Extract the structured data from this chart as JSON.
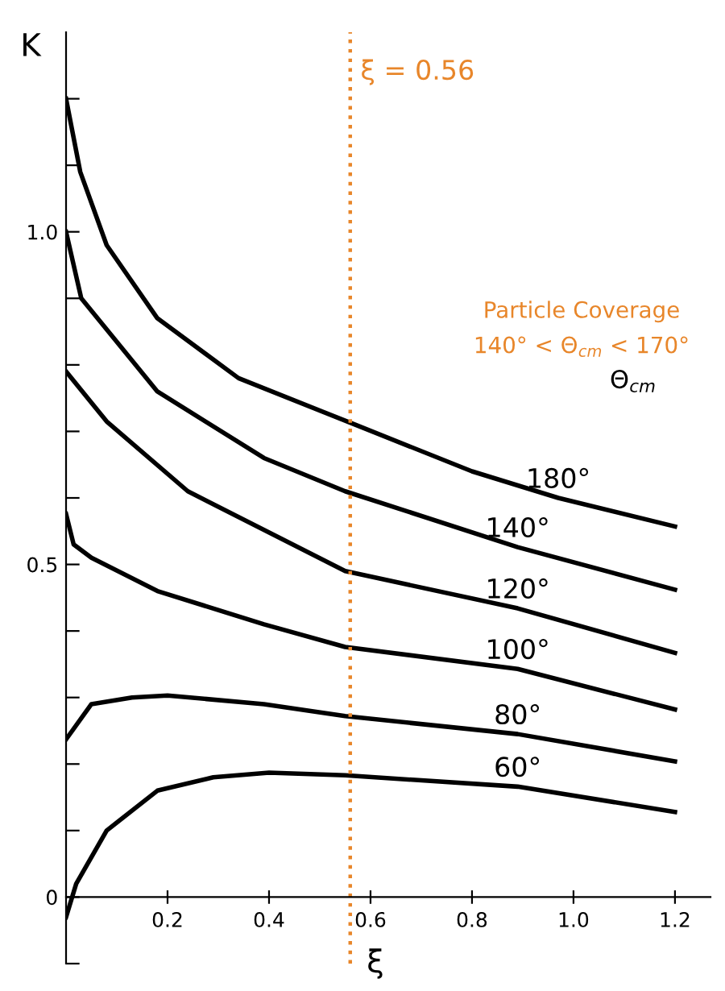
{
  "chart_data": {
    "type": "line",
    "xlabel": "ξ",
    "ylabel": "K",
    "xlim": [
      0,
      1.27
    ],
    "ylim": [
      -0.1,
      1.3
    ],
    "xticks": [
      0.2,
      0.4,
      0.6,
      0.8,
      {
        "value": 1.0,
        "label": "1.0"
      },
      1.2
    ],
    "yticks": [
      {
        "value": -0.1,
        "label": null
      },
      {
        "value": 0,
        "label": "0"
      },
      {
        "value": 0.1,
        "label": null
      },
      {
        "value": 0.2,
        "label": null
      },
      {
        "value": 0.3,
        "label": null
      },
      {
        "value": 0.4,
        "label": null
      },
      0.5,
      {
        "value": 0.6,
        "label": null
      },
      {
        "value": 0.7,
        "label": null
      },
      {
        "value": 0.8,
        "label": null
      },
      {
        "value": 0.9,
        "label": null
      },
      {
        "value": 1.0,
        "label": "1.0"
      },
      {
        "value": 1.1,
        "label": null
      },
      {
        "value": 1.2,
        "label": null
      }
    ],
    "grid": false,
    "legend": false,
    "marker": "none",
    "line_style": "solid",
    "series": [
      {
        "name": "180°",
        "color": "#000000",
        "x": [
          0,
          0.028,
          0.08,
          0.18,
          0.34,
          0.57,
          0.8,
          0.97,
          1.2
        ],
        "values": [
          1.2,
          1.09,
          0.98,
          0.87,
          0.78,
          0.71,
          0.64,
          0.6,
          0.557
        ]
      },
      {
        "name": "140°",
        "color": "#000000",
        "x": [
          0,
          0.03,
          0.18,
          0.39,
          0.55,
          0.89,
          1.2
        ],
        "values": [
          1.0,
          0.9,
          0.76,
          0.66,
          0.61,
          0.526,
          0.462
        ]
      },
      {
        "name": "120°",
        "color": "#000000",
        "x": [
          0,
          0.08,
          0.24,
          0.55,
          0.89,
          1.2
        ],
        "values": [
          0.79,
          0.715,
          0.61,
          0.49,
          0.434,
          0.367
        ]
      },
      {
        "name": "100°",
        "color": "#000000",
        "x": [
          0,
          0.015,
          0.05,
          0.18,
          0.39,
          0.55,
          0.89,
          1.2
        ],
        "values": [
          0.576,
          0.53,
          0.51,
          0.46,
          0.41,
          0.376,
          0.343,
          0.282
        ]
      },
      {
        "name": "80°",
        "color": "#000000",
        "x": [
          0,
          0.05,
          0.13,
          0.2,
          0.39,
          0.55,
          0.89,
          1.2
        ],
        "values": [
          0.237,
          0.29,
          0.3,
          0.303,
          0.29,
          0.272,
          0.245,
          0.204
        ]
      },
      {
        "name": "60°",
        "color": "#000000",
        "x": [
          0,
          0.02,
          0.08,
          0.18,
          0.29,
          0.4,
          0.55,
          0.89,
          1.2
        ],
        "values": [
          -0.03,
          0.02,
          0.1,
          0.16,
          0.18,
          0.187,
          0.183,
          0.166,
          0.128
        ]
      }
    ],
    "ref_lines": [
      {
        "axis": "x",
        "value": 0.56,
        "label": "ξ = 0.56",
        "color": "#e8862a",
        "line_style": "dotted"
      }
    ],
    "annotations": [
      "Particle Coverage",
      "140° < Θ$_{cm}$ < 170°",
      "Θ$_{cm}$"
    ]
  }
}
